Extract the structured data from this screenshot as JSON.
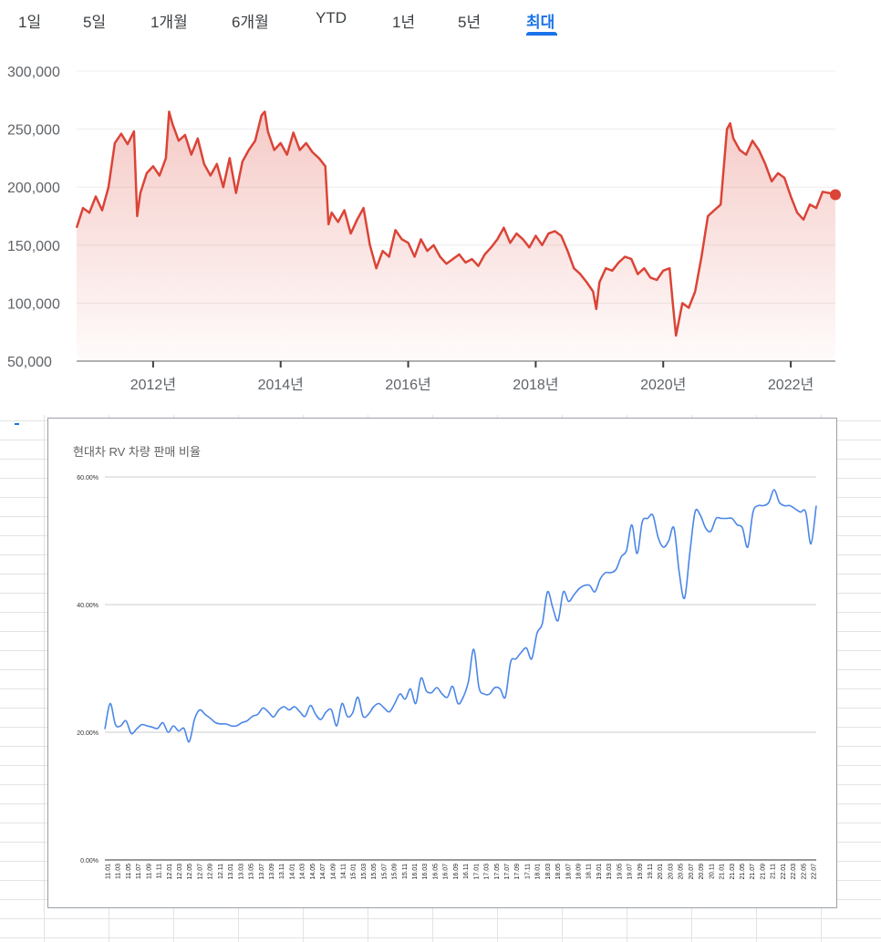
{
  "tabs": [
    {
      "label": "1일",
      "active": false
    },
    {
      "label": "5일",
      "active": false
    },
    {
      "label": "1개월",
      "active": false
    },
    {
      "label": "6개월",
      "active": false
    },
    {
      "label": "YTD",
      "active": false
    },
    {
      "label": "1년",
      "active": false
    },
    {
      "label": "5년",
      "active": false
    },
    {
      "label": "최대",
      "active": true
    }
  ],
  "colors": {
    "price_line": "#db4437",
    "accent": "#1a73e8",
    "ratio_line": "#4a86e8"
  },
  "chart_data": [
    {
      "type": "area",
      "title": "",
      "xlabel": "",
      "ylabel": "",
      "ylim": [
        50000,
        300000
      ],
      "y_ticks": [
        "50,000",
        "100,000",
        "150,000",
        "200,000",
        "250,000",
        "300,000"
      ],
      "x_ticks": [
        {
          "label": "2012년",
          "year": 2012
        },
        {
          "label": "2014년",
          "year": 2014
        },
        {
          "label": "2016년",
          "year": 2016
        },
        {
          "label": "2018년",
          "year": 2018
        },
        {
          "label": "2020년",
          "year": 2020
        },
        {
          "label": "2022년",
          "year": 2022
        }
      ],
      "xlim": [
        2010.8,
        2022.7
      ],
      "grid": true,
      "series": [
        {
          "points": [
            [
              2010.8,
              165000
            ],
            [
              2010.9,
              182000
            ],
            [
              2011.0,
              178000
            ],
            [
              2011.1,
              192000
            ],
            [
              2011.2,
              180000
            ],
            [
              2011.3,
              200000
            ],
            [
              2011.4,
              238000
            ],
            [
              2011.5,
              246000
            ],
            [
              2011.6,
              237000
            ],
            [
              2011.7,
              248000
            ],
            [
              2011.75,
              175000
            ],
            [
              2011.8,
              195000
            ],
            [
              2011.9,
              212000
            ],
            [
              2012.0,
              218000
            ],
            [
              2012.1,
              210000
            ],
            [
              2012.2,
              225000
            ],
            [
              2012.25,
              265000
            ],
            [
              2012.3,
              255000
            ],
            [
              2012.4,
              240000
            ],
            [
              2012.5,
              245000
            ],
            [
              2012.6,
              228000
            ],
            [
              2012.7,
              242000
            ],
            [
              2012.8,
              220000
            ],
            [
              2012.9,
              210000
            ],
            [
              2013.0,
              220000
            ],
            [
              2013.1,
              200000
            ],
            [
              2013.2,
              225000
            ],
            [
              2013.3,
              195000
            ],
            [
              2013.4,
              222000
            ],
            [
              2013.5,
              232000
            ],
            [
              2013.6,
              240000
            ],
            [
              2013.7,
              262000
            ],
            [
              2013.75,
              265000
            ],
            [
              2013.8,
              248000
            ],
            [
              2013.9,
              232000
            ],
            [
              2014.0,
              238000
            ],
            [
              2014.1,
              228000
            ],
            [
              2014.2,
              247000
            ],
            [
              2014.3,
              232000
            ],
            [
              2014.4,
              238000
            ],
            [
              2014.5,
              230000
            ],
            [
              2014.6,
              225000
            ],
            [
              2014.7,
              218000
            ],
            [
              2014.75,
              168000
            ],
            [
              2014.8,
              178000
            ],
            [
              2014.9,
              170000
            ],
            [
              2015.0,
              180000
            ],
            [
              2015.1,
              160000
            ],
            [
              2015.2,
              172000
            ],
            [
              2015.3,
              182000
            ],
            [
              2015.4,
              150000
            ],
            [
              2015.5,
              130000
            ],
            [
              2015.6,
              145000
            ],
            [
              2015.7,
              140000
            ],
            [
              2015.8,
              163000
            ],
            [
              2015.9,
              155000
            ],
            [
              2016.0,
              152000
            ],
            [
              2016.1,
              140000
            ],
            [
              2016.2,
              155000
            ],
            [
              2016.3,
              145000
            ],
            [
              2016.4,
              150000
            ],
            [
              2016.5,
              140000
            ],
            [
              2016.6,
              134000
            ],
            [
              2016.7,
              138000
            ],
            [
              2016.8,
              142000
            ],
            [
              2016.9,
              135000
            ],
            [
              2017.0,
              138000
            ],
            [
              2017.1,
              132000
            ],
            [
              2017.2,
              142000
            ],
            [
              2017.3,
              148000
            ],
            [
              2017.4,
              155000
            ],
            [
              2017.5,
              165000
            ],
            [
              2017.6,
              152000
            ],
            [
              2017.7,
              160000
            ],
            [
              2017.8,
              155000
            ],
            [
              2017.9,
              148000
            ],
            [
              2018.0,
              158000
            ],
            [
              2018.1,
              150000
            ],
            [
              2018.2,
              160000
            ],
            [
              2018.3,
              162000
            ],
            [
              2018.4,
              158000
            ],
            [
              2018.5,
              145000
            ],
            [
              2018.6,
              130000
            ],
            [
              2018.7,
              125000
            ],
            [
              2018.8,
              118000
            ],
            [
              2018.9,
              110000
            ],
            [
              2018.95,
              95000
            ],
            [
              2019.0,
              118000
            ],
            [
              2019.1,
              130000
            ],
            [
              2019.2,
              128000
            ],
            [
              2019.3,
              135000
            ],
            [
              2019.4,
              140000
            ],
            [
              2019.5,
              138000
            ],
            [
              2019.6,
              125000
            ],
            [
              2019.7,
              130000
            ],
            [
              2019.8,
              122000
            ],
            [
              2019.9,
              120000
            ],
            [
              2020.0,
              128000
            ],
            [
              2020.1,
              130000
            ],
            [
              2020.15,
              100000
            ],
            [
              2020.2,
              72000
            ],
            [
              2020.3,
              100000
            ],
            [
              2020.4,
              96000
            ],
            [
              2020.5,
              110000
            ],
            [
              2020.6,
              140000
            ],
            [
              2020.7,
              175000
            ],
            [
              2020.8,
              180000
            ],
            [
              2020.9,
              185000
            ],
            [
              2021.0,
              250000
            ],
            [
              2021.05,
              255000
            ],
            [
              2021.1,
              242000
            ],
            [
              2021.2,
              232000
            ],
            [
              2021.3,
              228000
            ],
            [
              2021.4,
              240000
            ],
            [
              2021.5,
              232000
            ],
            [
              2021.6,
              220000
            ],
            [
              2021.7,
              205000
            ],
            [
              2021.8,
              212000
            ],
            [
              2021.9,
              208000
            ],
            [
              2022.0,
              192000
            ],
            [
              2022.1,
              178000
            ],
            [
              2022.2,
              172000
            ],
            [
              2022.3,
              185000
            ],
            [
              2022.4,
              182000
            ],
            [
              2022.5,
              196000
            ],
            [
              2022.6,
              195000
            ],
            [
              2022.7,
              193500
            ]
          ]
        }
      ]
    },
    {
      "type": "line",
      "title": "현대차 RV 차량 판매 비율",
      "xlabel": "",
      "ylabel": "",
      "ylim": [
        0,
        60
      ],
      "y_ticks": [
        "0.00%",
        "20.00%",
        "40.00%",
        "60.00%"
      ],
      "grid": true,
      "x_ticks": [
        "11.01",
        "11.03",
        "11.05",
        "11.07",
        "11.09",
        "11.11",
        "12.01",
        "12.03",
        "12.05",
        "12.07",
        "12.09",
        "12.11",
        "13.01",
        "13.03",
        "13.05",
        "13.07",
        "13.09",
        "13.11",
        "14.01",
        "14.03",
        "14.05",
        "14.07",
        "14.09",
        "14.11",
        "15.01",
        "15.03",
        "15.05",
        "15.07",
        "15.09",
        "15.11",
        "16.01",
        "16.03",
        "16.05",
        "16.07",
        "16.09",
        "16.11",
        "17.01",
        "17.03",
        "17.05",
        "17.07",
        "17.09",
        "17.11",
        "18.01",
        "18.03",
        "18.05",
        "18.07",
        "18.09",
        "18.11",
        "19.01",
        "19.03",
        "19.05",
        "19.07",
        "19.09",
        "19.11",
        "20.01",
        "20.03",
        "20.05",
        "20.07",
        "20.09",
        "20.11",
        "21.01",
        "21.03",
        "21.05",
        "21.07",
        "21.09",
        "21.11",
        "22.01",
        "22.03",
        "22.05",
        "22.07"
      ],
      "series": [
        {
          "values": [
            20.5,
            24.5,
            21.2,
            21.0,
            21.8,
            19.8,
            20.5,
            21.2,
            21.0,
            20.8,
            20.6,
            21.5,
            20.0,
            21.0,
            20.2,
            20.6,
            18.5,
            22.0,
            23.5,
            22.8,
            22.2,
            21.5,
            21.3,
            21.3,
            21.0,
            21.0,
            21.5,
            21.8,
            22.5,
            22.8,
            23.8,
            23.2,
            22.4,
            23.5,
            24.0,
            23.5,
            24.0,
            23.2,
            22.5,
            24.2,
            22.8,
            22.0,
            23.2,
            23.5,
            21.0,
            24.5,
            22.5,
            23.0,
            25.5,
            22.5,
            22.8,
            24.0,
            24.5,
            23.8,
            23.2,
            24.5,
            26.0,
            25.2,
            26.8,
            24.5,
            28.5,
            26.5,
            26.2,
            27.0,
            26.0,
            25.5,
            27.2,
            24.5,
            25.5,
            28.0,
            33.0,
            27.0,
            26.0,
            26.0,
            27.0,
            26.8,
            25.5,
            31.0,
            31.5,
            32.5,
            33.2,
            31.5,
            35.5,
            37.0,
            42.0,
            39.5,
            37.5,
            42.0,
            40.5,
            41.5,
            42.5,
            43.0,
            43.0,
            42.0,
            44.0,
            45.0,
            45.0,
            45.5,
            47.5,
            48.5,
            52.5,
            48.0,
            53.0,
            53.5,
            54.0,
            50.5,
            49.0,
            50.0,
            52.0,
            45.0,
            41.0,
            48.0,
            54.5,
            54.0,
            52.0,
            51.5,
            53.5,
            53.5,
            53.5,
            53.5,
            52.5,
            52.0,
            49.0,
            54.5,
            55.5,
            55.5,
            56.0,
            58.0,
            56.0,
            55.5,
            55.5,
            55.0,
            54.5,
            54.5,
            49.5,
            55.5
          ]
        }
      ]
    }
  ]
}
